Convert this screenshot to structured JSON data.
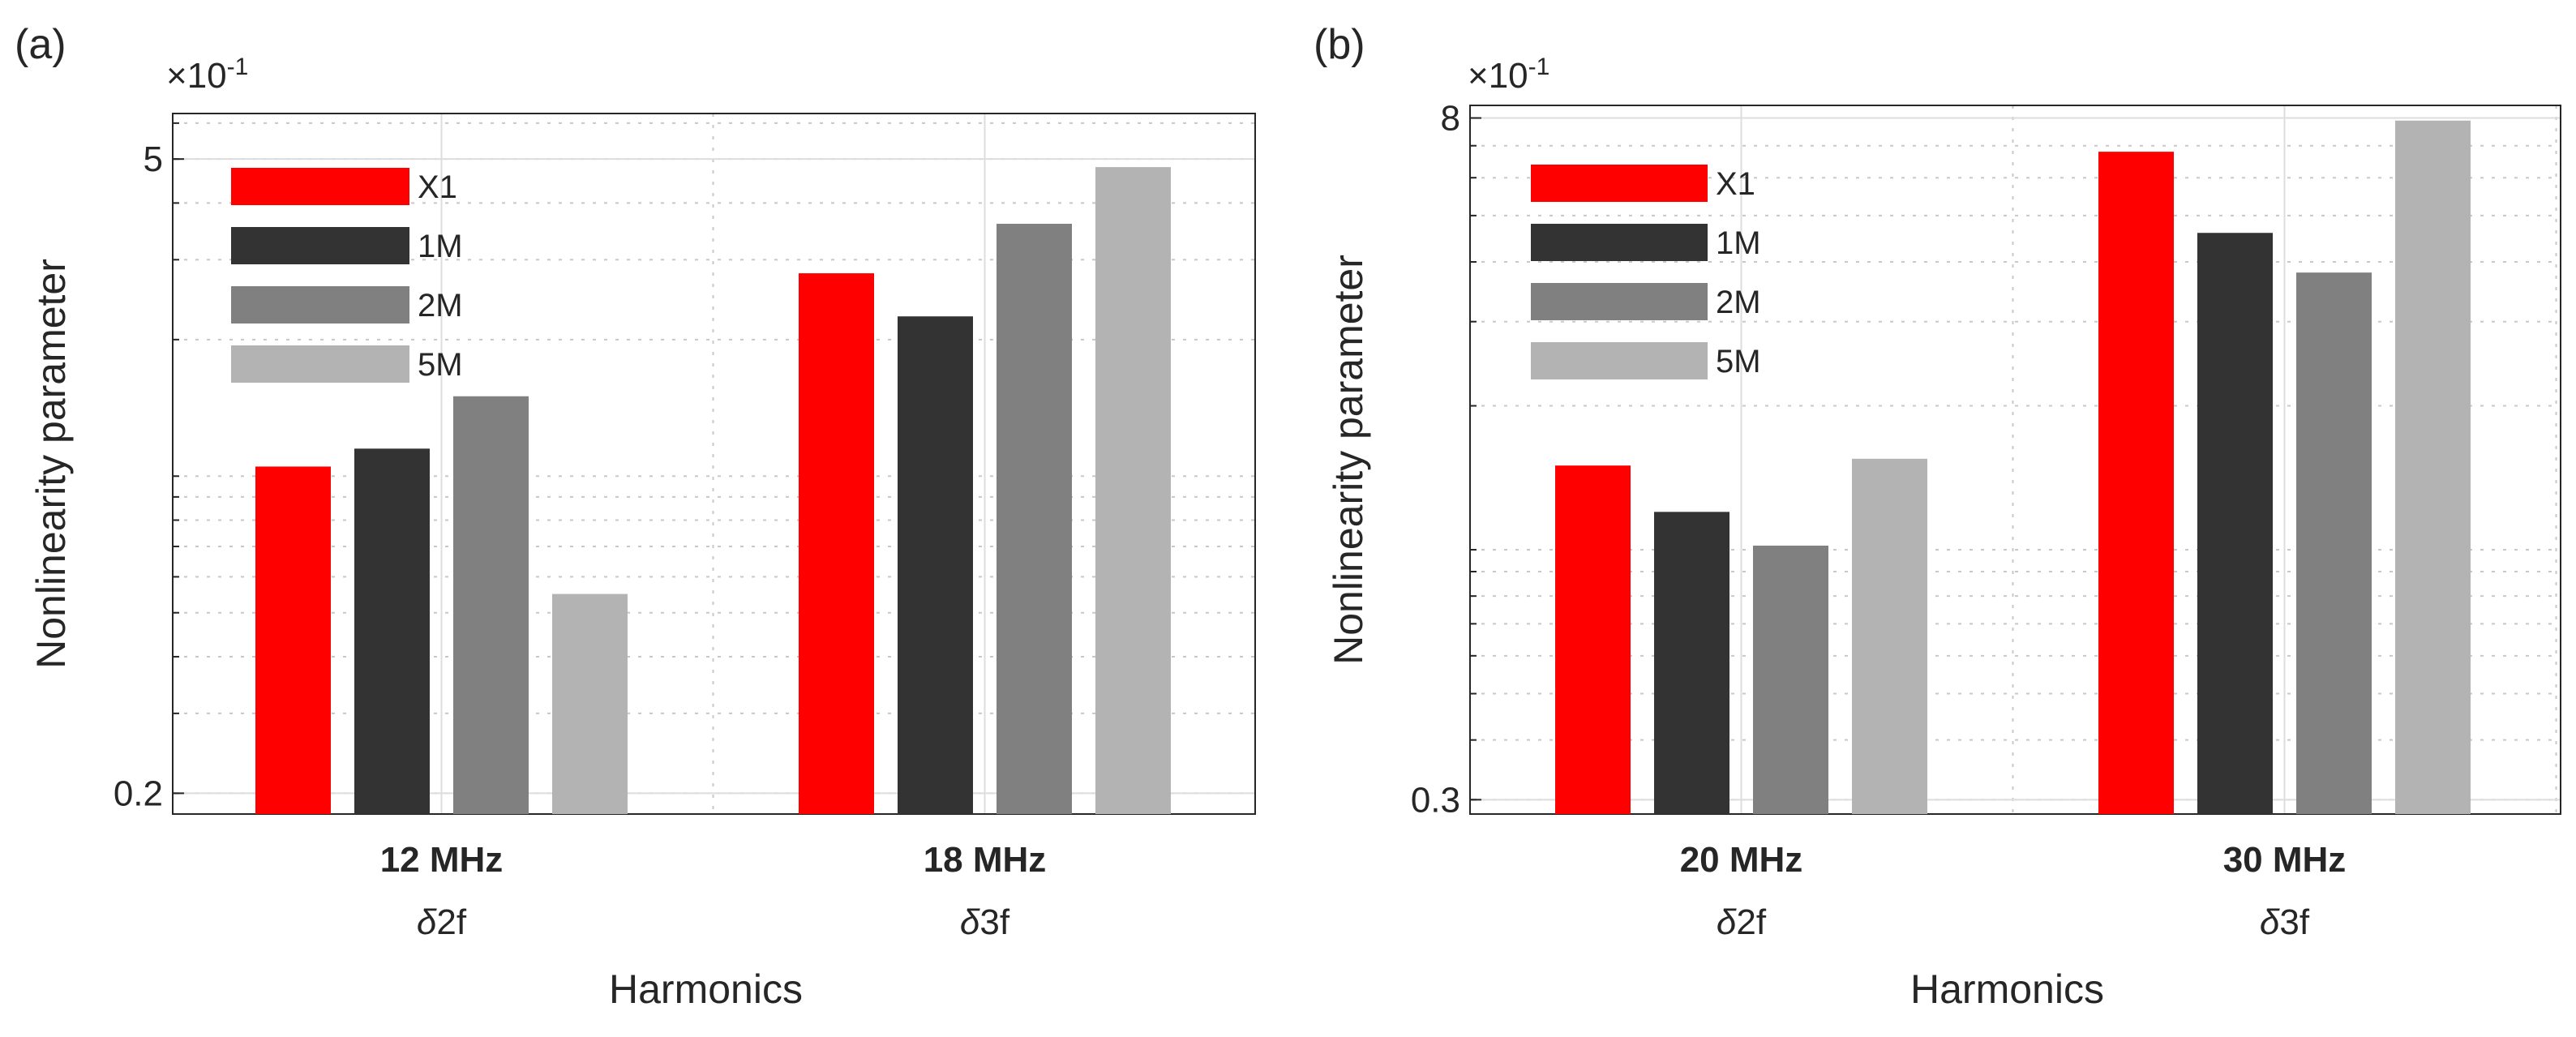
{
  "chart_data": [
    {
      "type": "bar",
      "panel_label": "(a)",
      "scale_multiplier": "×10",
      "scale_exponent": "-1",
      "yscale": "log",
      "ylim": [
        0.18,
        6.3
      ],
      "yticks": [
        0.2,
        5
      ],
      "ytick_labels": [
        "0.2",
        "5"
      ],
      "ylabel": "Nonlinearity parameter",
      "xlabel": "Harmonics",
      "categories": [
        "12 MHz",
        "18 MHz"
      ],
      "sublabels": [
        {
          "prefix": "δ",
          "text": "2f"
        },
        {
          "prefix": "δ",
          "text": "3f"
        }
      ],
      "legend_position": "top-left",
      "grid": true,
      "series": [
        {
          "name": "X1",
          "color": "#ff0000",
          "values": [
            1.05,
            2.8
          ]
        },
        {
          "name": "1M",
          "color": "#333333",
          "values": [
            1.15,
            2.25
          ]
        },
        {
          "name": "2M",
          "color": "#808080",
          "values": [
            1.5,
            3.6
          ]
        },
        {
          "name": "5M",
          "color": "#b3b3b3",
          "values": [
            0.55,
            4.8
          ]
        }
      ]
    },
    {
      "type": "bar",
      "panel_label": "(b)",
      "scale_multiplier": "×10",
      "scale_exponent": "-1",
      "yscale": "log",
      "ylim": [
        0.28,
        8.5
      ],
      "yticks": [
        0.3,
        8
      ],
      "ytick_labels": [
        "0.3",
        "8"
      ],
      "ylabel": "Nonlinearity parameter",
      "xlabel": "Harmonics",
      "categories": [
        "20 MHz",
        "30 MHz"
      ],
      "sublabels": [
        {
          "prefix": "δ",
          "text": "2f"
        },
        {
          "prefix": "δ",
          "text": "3f"
        }
      ],
      "legend_position": "top-left",
      "grid": true,
      "series": [
        {
          "name": "X1",
          "color": "#ff0000",
          "values": [
            1.5,
            6.8
          ]
        },
        {
          "name": "1M",
          "color": "#333333",
          "values": [
            1.2,
            4.6
          ]
        },
        {
          "name": "2M",
          "color": "#808080",
          "values": [
            1.02,
            3.8
          ]
        },
        {
          "name": "5M",
          "color": "#b3b3b3",
          "values": [
            1.55,
            7.9
          ]
        }
      ]
    }
  ]
}
